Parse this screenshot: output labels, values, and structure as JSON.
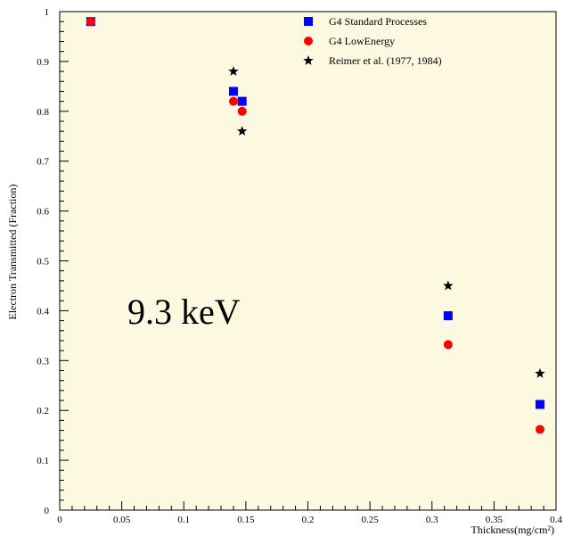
{
  "chart_data": {
    "type": "scatter",
    "xlabel": "Thickness(mg/cm²)",
    "ylabel": "Electron Transmitted (Fraction)",
    "xlim": [
      0,
      0.4
    ],
    "ylim": [
      0,
      1
    ],
    "x_ticks": [
      "0",
      "0.05",
      "0.1",
      "0.15",
      "0.2",
      "0.25",
      "0.3",
      "0.35",
      "0.4"
    ],
    "y_ticks": [
      "0",
      "0.1",
      "0.2",
      "0.3",
      "0.4",
      "0.5",
      "0.6",
      "0.7",
      "0.8",
      "0.9",
      "1"
    ],
    "grid": false,
    "legend_position": "top-right",
    "annotation": "9.3 keV",
    "background_color": "#fdf8e0",
    "series": [
      {
        "name": "G4 Standard Processes",
        "marker": "square",
        "color": "#0000ff",
        "points": [
          {
            "x": 0.025,
            "y": 0.98
          },
          {
            "x": 0.14,
            "y": 0.84
          },
          {
            "x": 0.147,
            "y": 0.82
          },
          {
            "x": 0.313,
            "y": 0.39
          },
          {
            "x": 0.387,
            "y": 0.212
          }
        ]
      },
      {
        "name": "G4 LowEnergy",
        "marker": "circle",
        "color": "#ff0000",
        "points": [
          {
            "x": 0.025,
            "y": 0.98
          },
          {
            "x": 0.14,
            "y": 0.82
          },
          {
            "x": 0.147,
            "y": 0.8
          },
          {
            "x": 0.313,
            "y": 0.332
          },
          {
            "x": 0.387,
            "y": 0.162
          }
        ]
      },
      {
        "name": "Reimer et al. (1977, 1984)",
        "marker": "star",
        "color": "#000000",
        "points": [
          {
            "x": 0.14,
            "y": 0.88
          },
          {
            "x": 0.147,
            "y": 0.76
          },
          {
            "x": 0.313,
            "y": 0.45
          },
          {
            "x": 0.387,
            "y": 0.274
          }
        ]
      }
    ]
  }
}
